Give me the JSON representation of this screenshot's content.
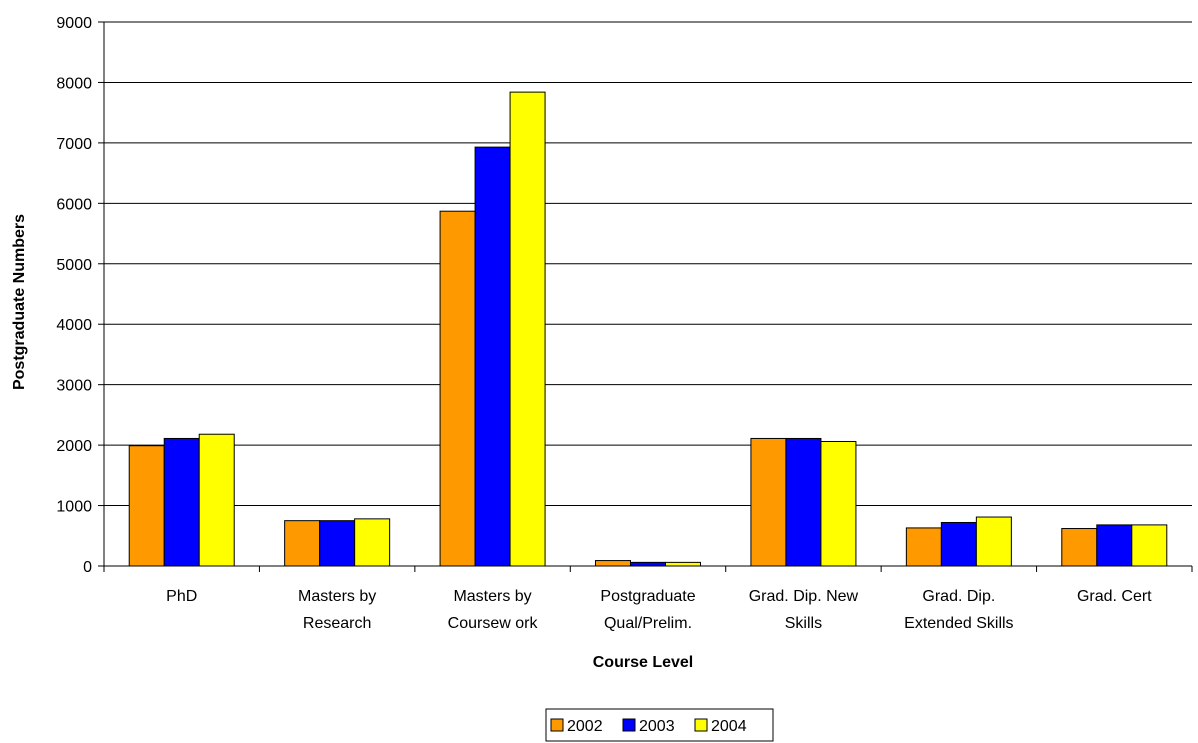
{
  "chart_data": {
    "type": "bar",
    "categories": [
      "PhD",
      "Masters by Research",
      "Masters by Coursew ork",
      "Postgraduate Qual/Prelim.",
      "Grad. Dip. New Skills",
      "Grad. Dip. Extended Skills",
      "Grad. Cert"
    ],
    "category_lines": [
      [
        "PhD"
      ],
      [
        "Masters by",
        "Research"
      ],
      [
        "Masters by",
        "Coursew ork"
      ],
      [
        "Postgraduate",
        "Qual/Prelim."
      ],
      [
        "Grad. Dip. New",
        "Skills"
      ],
      [
        "Grad. Dip.",
        "Extended Skills"
      ],
      [
        "Grad. Cert"
      ]
    ],
    "series": [
      {
        "name": "2002",
        "color": "#FF9900",
        "values": [
          1990,
          750,
          5870,
          90,
          2110,
          630,
          620
        ]
      },
      {
        "name": "2003",
        "color": "#0000FF",
        "values": [
          2110,
          750,
          6930,
          60,
          2110,
          720,
          680
        ]
      },
      {
        "name": "2004",
        "color": "#FFFF00",
        "values": [
          2180,
          780,
          7840,
          60,
          2060,
          810,
          680
        ]
      }
    ],
    "xlabel": "Course Level",
    "ylabel": "Postgraduate Numbers",
    "ylim": [
      0,
      9000
    ],
    "yticks": [
      0,
      1000,
      2000,
      3000,
      4000,
      5000,
      6000,
      7000,
      8000,
      9000
    ],
    "grid": true,
    "legend_position": "bottom"
  }
}
